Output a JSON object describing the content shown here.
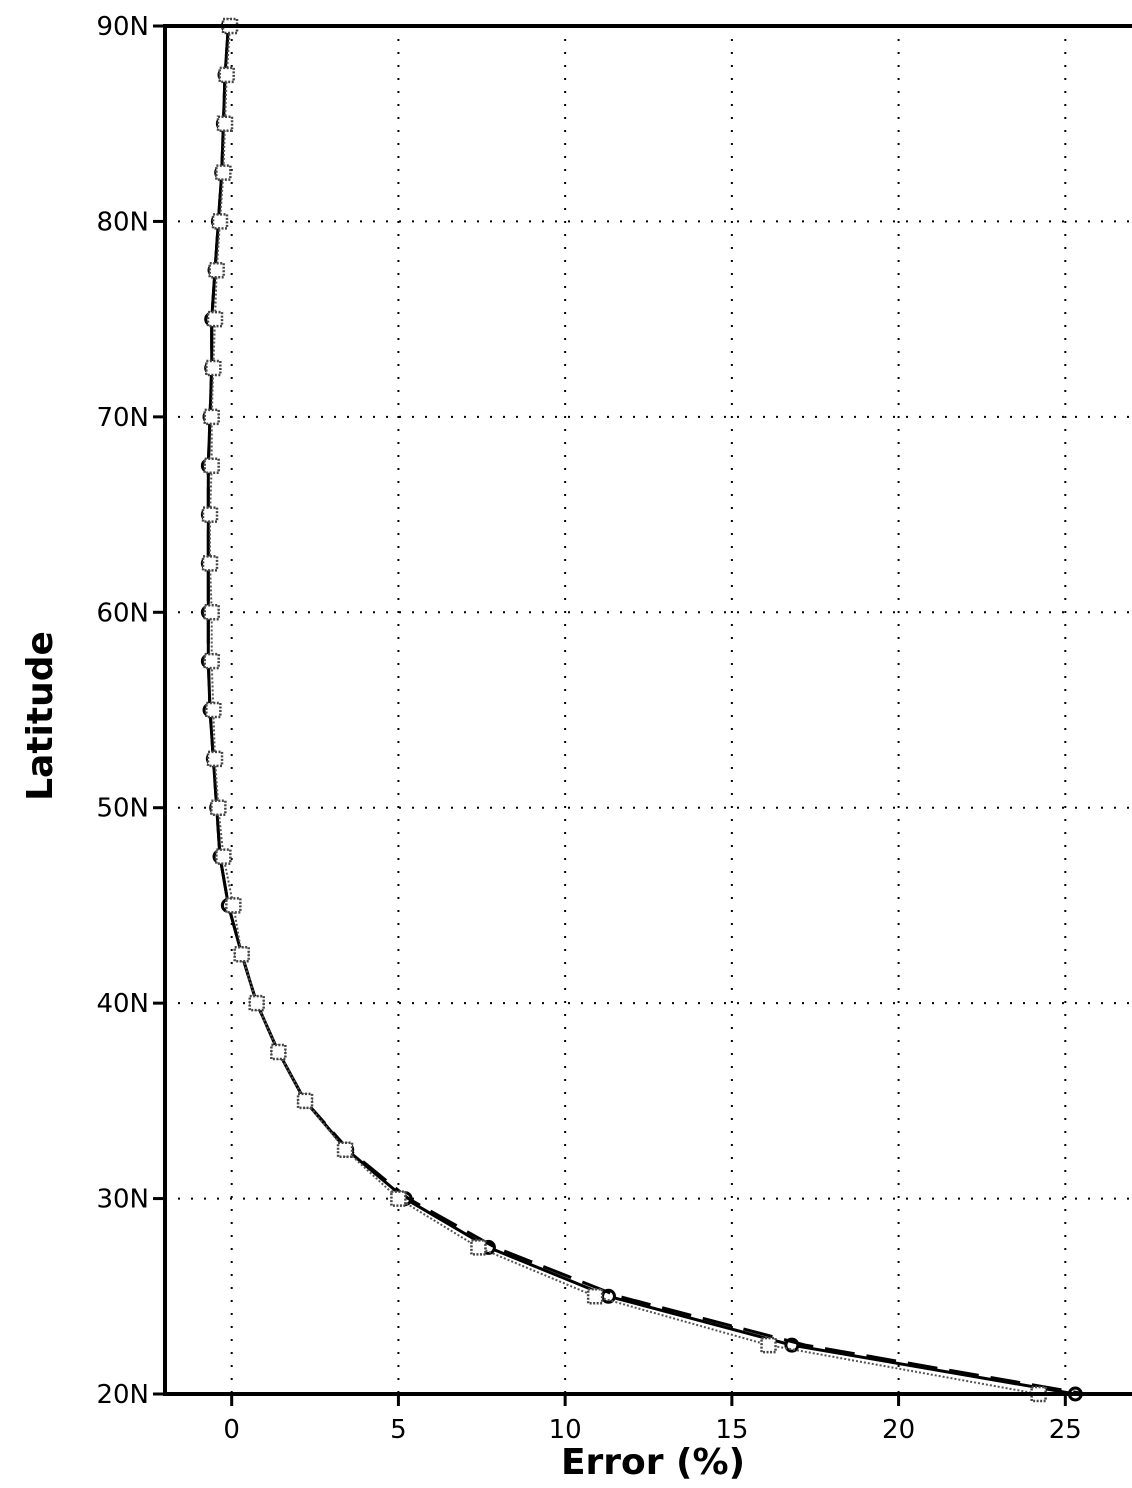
{
  "chart_data": {
    "type": "line",
    "title": "",
    "xlabel": "Error (%)",
    "ylabel": "Latitude",
    "xlim": [
      -2,
      27
    ],
    "ylim": [
      20,
      90
    ],
    "xticks": [
      0,
      5,
      10,
      15,
      20,
      25
    ],
    "xtick_labels": [
      "0",
      "5",
      "10",
      "15",
      "20",
      "25"
    ],
    "yticks": [
      20,
      30,
      40,
      50,
      60,
      70,
      80,
      90
    ],
    "ytick_labels": [
      "20N",
      "30N",
      "40N",
      "50N",
      "60N",
      "70N",
      "80N",
      "90N"
    ],
    "grid": true,
    "legend": null,
    "series": [
      {
        "style": "solid-circle",
        "color": "#000000",
        "points": [
          [
            -0.1,
            90
          ],
          [
            -0.2,
            87.5
          ],
          [
            -0.25,
            85
          ],
          [
            -0.3,
            82.5
          ],
          [
            -0.4,
            80
          ],
          [
            -0.5,
            77.5
          ],
          [
            -0.6,
            75
          ],
          [
            -0.6,
            72.5
          ],
          [
            -0.65,
            70
          ],
          [
            -0.7,
            67.5
          ],
          [
            -0.7,
            65
          ],
          [
            -0.7,
            62.5
          ],
          [
            -0.7,
            60
          ],
          [
            -0.7,
            57.5
          ],
          [
            -0.65,
            55
          ],
          [
            -0.55,
            52.5
          ],
          [
            -0.45,
            50
          ],
          [
            -0.35,
            47.5
          ],
          [
            -0.1,
            45
          ],
          [
            0.3,
            42.5
          ],
          [
            0.75,
            40
          ],
          [
            1.4,
            37.5
          ],
          [
            2.2,
            35
          ],
          [
            3.45,
            32.5
          ],
          [
            5.2,
            30
          ],
          [
            7.7,
            27.5
          ],
          [
            11.3,
            25
          ],
          [
            16.8,
            22.5
          ],
          [
            25.3,
            20
          ]
        ]
      },
      {
        "style": "dashed",
        "color": "#000000",
        "points": [
          [
            -0.1,
            90
          ],
          [
            -0.2,
            87.5
          ],
          [
            -0.25,
            85
          ],
          [
            -0.3,
            82.5
          ],
          [
            -0.4,
            80
          ],
          [
            -0.5,
            77.5
          ],
          [
            -0.6,
            75
          ],
          [
            -0.6,
            72.5
          ],
          [
            -0.65,
            70
          ],
          [
            -0.7,
            67.5
          ],
          [
            -0.7,
            65
          ],
          [
            -0.7,
            62.5
          ],
          [
            -0.7,
            60
          ],
          [
            -0.7,
            57.5
          ],
          [
            -0.65,
            55
          ],
          [
            -0.55,
            52.5
          ],
          [
            -0.45,
            50
          ],
          [
            -0.35,
            47.5
          ],
          [
            -0.1,
            45
          ],
          [
            0.3,
            42.5
          ],
          [
            0.75,
            40
          ],
          [
            1.4,
            37.5
          ],
          [
            2.2,
            35
          ],
          [
            3.5,
            32.5
          ],
          [
            5.3,
            30
          ],
          [
            7.9,
            27.5
          ],
          [
            11.6,
            25
          ],
          [
            17.2,
            22.5
          ],
          [
            25.6,
            20
          ]
        ]
      },
      {
        "style": "dotted-square",
        "color": "#555555",
        "points": [
          [
            -0.05,
            90
          ],
          [
            -0.15,
            87.5
          ],
          [
            -0.2,
            85
          ],
          [
            -0.25,
            82.5
          ],
          [
            -0.35,
            80
          ],
          [
            -0.45,
            77.5
          ],
          [
            -0.5,
            75
          ],
          [
            -0.55,
            72.5
          ],
          [
            -0.6,
            70
          ],
          [
            -0.6,
            67.5
          ],
          [
            -0.65,
            65
          ],
          [
            -0.65,
            62.5
          ],
          [
            -0.6,
            60
          ],
          [
            -0.6,
            57.5
          ],
          [
            -0.55,
            55
          ],
          [
            -0.5,
            52.5
          ],
          [
            -0.4,
            50
          ],
          [
            -0.25,
            47.5
          ],
          [
            0.05,
            45
          ],
          [
            0.3,
            42.5
          ],
          [
            0.75,
            40
          ],
          [
            1.4,
            37.5
          ],
          [
            2.2,
            35
          ],
          [
            3.4,
            32.5
          ],
          [
            5.0,
            30
          ],
          [
            7.4,
            27.5
          ],
          [
            10.9,
            25
          ],
          [
            16.1,
            22.5
          ],
          [
            24.2,
            20
          ]
        ]
      }
    ]
  }
}
